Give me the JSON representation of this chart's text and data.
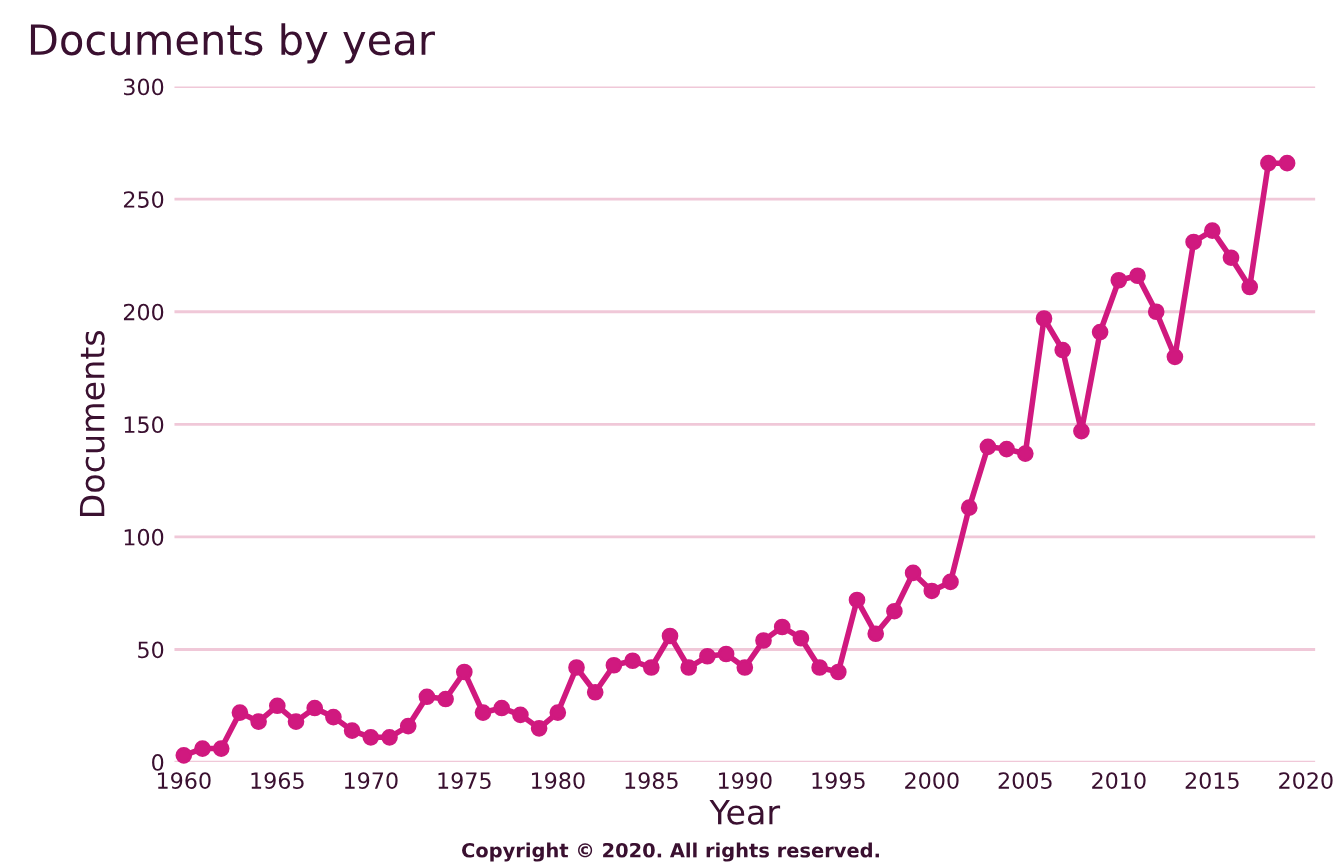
{
  "chart_data": {
    "type": "line",
    "title": "Documents by year",
    "xlabel": "Year",
    "ylabel": "Documents",
    "annotations": [
      "Copyright © 2020. All rights reserved."
    ],
    "x": [
      1960,
      1961,
      1962,
      1963,
      1964,
      1965,
      1966,
      1967,
      1968,
      1969,
      1970,
      1971,
      1972,
      1973,
      1974,
      1975,
      1976,
      1977,
      1978,
      1979,
      1980,
      1981,
      1982,
      1983,
      1984,
      1985,
      1986,
      1987,
      1988,
      1989,
      1990,
      1991,
      1992,
      1993,
      1994,
      1995,
      1996,
      1997,
      1998,
      1999,
      2000,
      2001,
      2002,
      2003,
      2004,
      2005,
      2006,
      2007,
      2008,
      2009,
      2010,
      2011,
      2012,
      2013,
      2014,
      2015,
      2016,
      2017,
      2018,
      2019
    ],
    "series": [
      {
        "color": "#d0197f",
        "values": [
          3,
          6,
          6,
          22,
          18,
          25,
          18,
          24,
          20,
          14,
          11,
          11,
          16,
          29,
          28,
          40,
          22,
          24,
          21,
          15,
          22,
          42,
          31,
          43,
          45,
          42,
          56,
          42,
          47,
          48,
          42,
          54,
          60,
          55,
          42,
          40,
          72,
          57,
          67,
          84,
          76,
          80,
          113,
          140,
          139,
          137,
          197,
          183,
          147,
          191,
          214,
          216,
          200,
          180,
          231,
          236,
          224,
          211,
          266,
          266
        ]
      }
    ],
    "xlim": [
      1959.5,
      2020.5
    ],
    "xticks": [
      1960,
      1965,
      1970,
      1975,
      1980,
      1985,
      1990,
      1995,
      2000,
      2005,
      2010,
      2015,
      2020
    ],
    "ylim": [
      0,
      300
    ],
    "yticks": [
      0,
      50,
      100,
      150,
      200,
      250,
      300
    ],
    "grid": "y",
    "marker": "circle",
    "line_style": "solid"
  }
}
